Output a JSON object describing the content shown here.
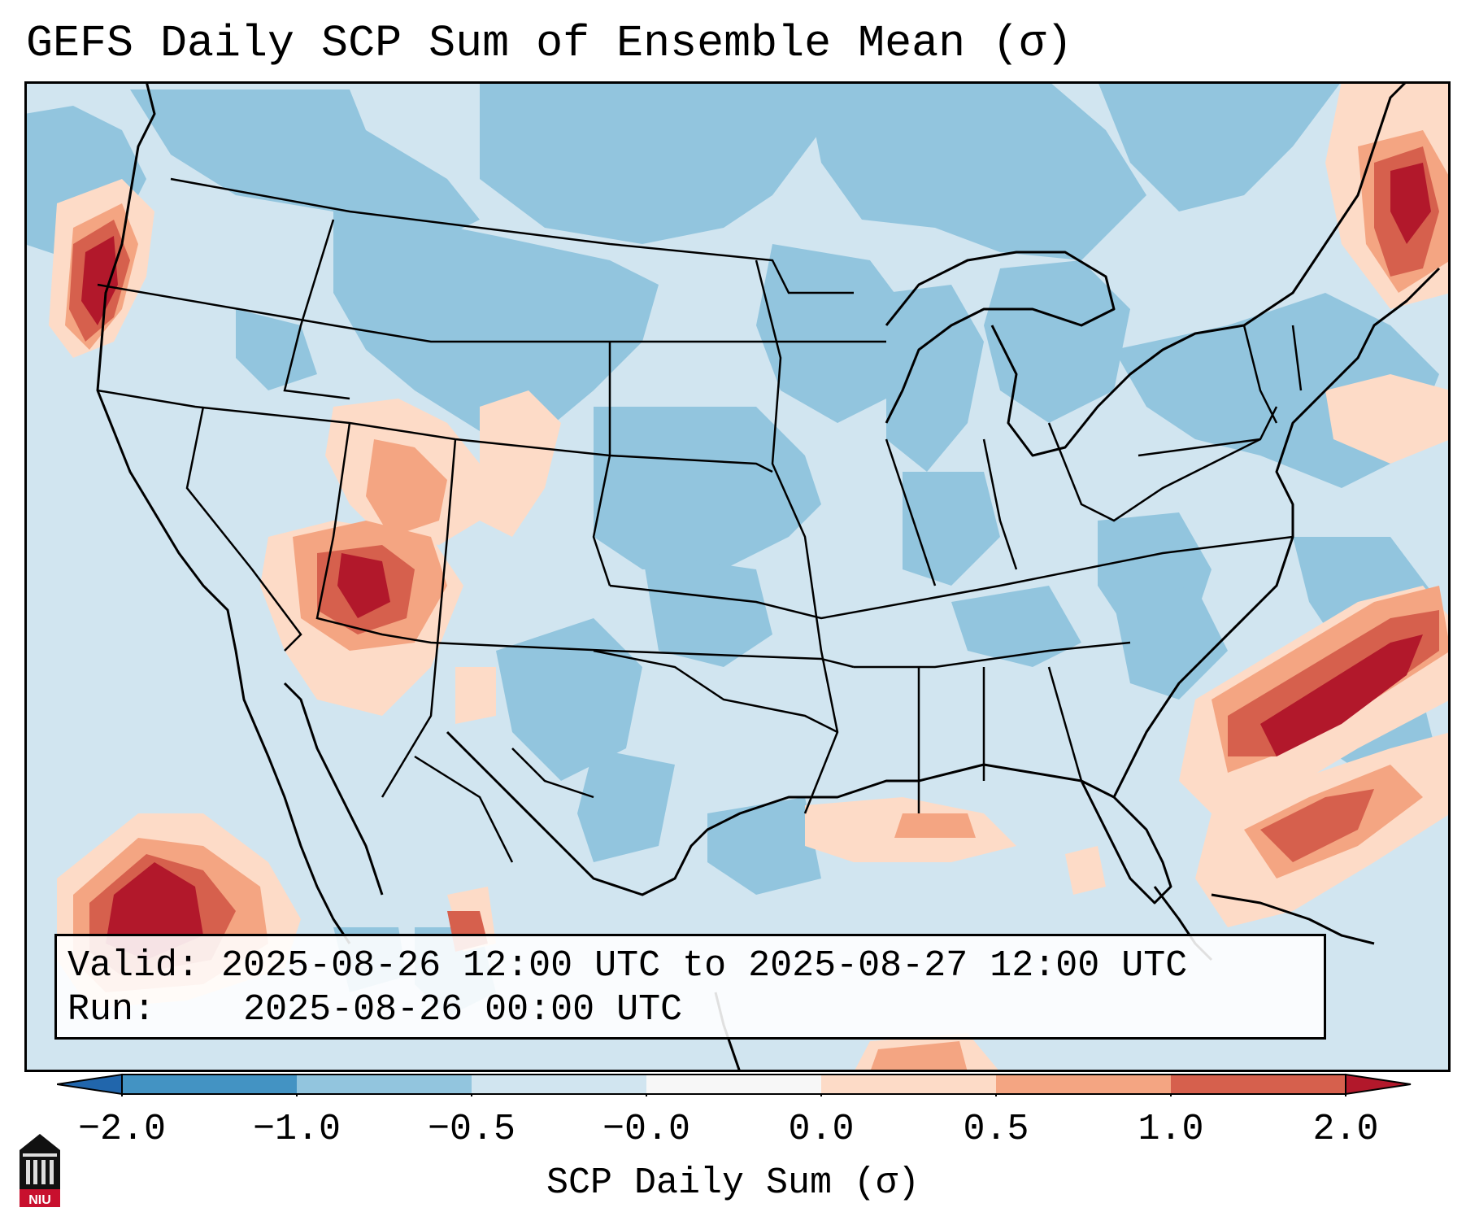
{
  "title": "GEFS Daily SCP Sum of Ensemble Mean (σ)",
  "info": {
    "valid_label": "Valid:",
    "valid_value": "2025-08-26 12:00 UTC to 2025-08-27 12:00 UTC",
    "run_label": "Run:",
    "run_value": "2025-08-26 00:00 UTC"
  },
  "colorbar": {
    "label": "SCP Daily Sum (σ)",
    "ticks": [
      "−2.0",
      "−1.0",
      "−0.5",
      "−0.0",
      "0.0",
      "0.5",
      "1.0",
      "2.0"
    ],
    "bins": [
      {
        "range": "-2.0 to -1.0",
        "color": "#4393c3"
      },
      {
        "range": "-1.0 to -0.5",
        "color": "#92c5de"
      },
      {
        "range": "-0.5 to -0.0",
        "color": "#d1e5f0"
      },
      {
        "range": "-0.0 to 0.0",
        "color": "#f7f7f7"
      },
      {
        "range": "0.0 to 0.5",
        "color": "#fddbc7"
      },
      {
        "range": "0.5 to 1.0",
        "color": "#f4a582"
      },
      {
        "range": "1.0 to 2.0",
        "color": "#d6604d"
      }
    ],
    "extend_low_color": "#2166ac",
    "extend_high_color": "#b2182b"
  },
  "map": {
    "background_color": "#d1e5f0",
    "outline_color": "#000000"
  },
  "logo": {
    "text": "NIU",
    "icon": "niu-building-icon"
  }
}
